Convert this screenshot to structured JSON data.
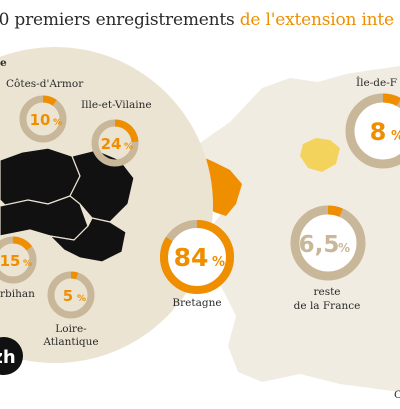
{
  "title": {
    "part1": "00 premiers enregistrements",
    "part2": "de l'extension inte"
  },
  "colors": {
    "accent": "#ef8f00",
    "track": "#c9b79a",
    "circle_bg": "#ece4d3",
    "map_fill": "#f1ece2",
    "dark": "#111111"
  },
  "chart_data": {
    "type": "donut",
    "unit": "%",
    "groups": [
      {
        "label": "Bretagne",
        "value": 84,
        "value_text": "84",
        "breakdown": [
          {
            "label": "Côtes-d'Armor",
            "value": 10,
            "value_text": "10"
          },
          {
            "label": "Ille-et-Vilaine",
            "value": 24,
            "value_text": "24"
          },
          {
            "label": "rbihan",
            "value": 15,
            "value_text": "15"
          },
          {
            "label": "Loire-Atlantique",
            "value": 5,
            "value_text": "5"
          }
        ]
      },
      {
        "label": "Île-de-F",
        "value": 8,
        "value_text": "8"
      },
      {
        "label": "reste de la France",
        "value": 6.5,
        "value_text": "6,5"
      }
    ]
  },
  "labels": {
    "ille_et_vilaine": "Ille-et-Vilaine",
    "cotes_darmor": "Côtes-d'Armor",
    "morbihan": "rbihan",
    "loire_line1": "Loire-",
    "loire_line2": "Atlantique",
    "bretagne": "Bretagne",
    "idf": "Île-de-F",
    "reste_line1": "reste",
    "reste_line2": "de la France",
    "letter_e": "e",
    "logo": "zh",
    "source": "C"
  }
}
